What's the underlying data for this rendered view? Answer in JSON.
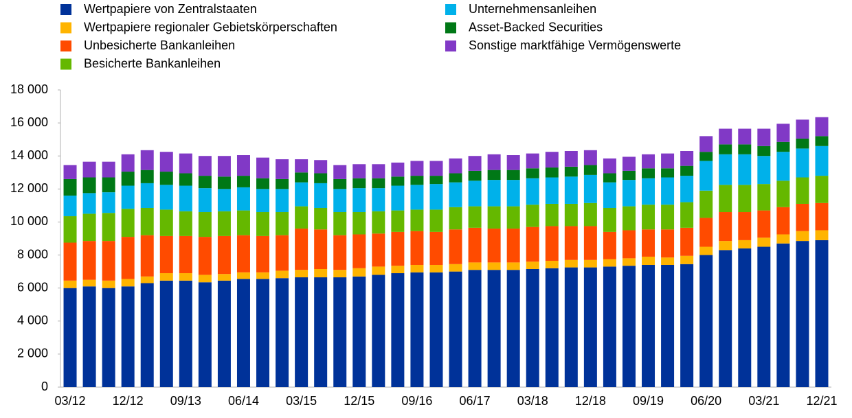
{
  "chart_data": {
    "type": "stacked_bar",
    "categories": [
      "03/12",
      null,
      null,
      "12/12",
      null,
      null,
      "09/13",
      null,
      null,
      "06/14",
      null,
      null,
      "03/15",
      null,
      null,
      "12/15",
      null,
      null,
      "09/16",
      null,
      null,
      "06/17",
      null,
      null,
      "03/18",
      null,
      null,
      "12/18",
      null,
      null,
      "09/19",
      null,
      null,
      "06/20",
      null,
      null,
      "03/21",
      null,
      null,
      "12/21"
    ],
    "series": [
      {
        "name": "Wertpapiere von Zentralstaaten",
        "color": "#003299",
        "values": [
          6000,
          6100,
          6000,
          6100,
          6300,
          6450,
          6450,
          6350,
          6450,
          6550,
          6550,
          6600,
          6650,
          6650,
          6650,
          6700,
          6800,
          6900,
          6950,
          6950,
          7000,
          7100,
          7100,
          7100,
          7150,
          7200,
          7250,
          7250,
          7300,
          7350,
          7400,
          7400,
          7450,
          8000,
          8300,
          8400,
          8500,
          8700,
          8850,
          8900
        ]
      },
      {
        "name": "Wertpapiere regionaler Gebietskörperschaften",
        "color": "#ffb400",
        "values": [
          450,
          400,
          450,
          450,
          400,
          450,
          450,
          450,
          400,
          400,
          400,
          450,
          450,
          500,
          450,
          500,
          500,
          450,
          450,
          450,
          450,
          450,
          450,
          450,
          450,
          450,
          450,
          450,
          450,
          450,
          500,
          450,
          500,
          500,
          550,
          500,
          550,
          550,
          600,
          600
        ]
      },
      {
        "name": "Unbesicherte Bankanleihen",
        "color": "#ff4b00",
        "values": [
          2300,
          2350,
          2400,
          2550,
          2500,
          2250,
          2250,
          2300,
          2300,
          2250,
          2200,
          2150,
          2500,
          2400,
          2100,
          2050,
          2000,
          2050,
          2050,
          2000,
          2100,
          2100,
          2050,
          2050,
          2100,
          2100,
          2050,
          2050,
          1650,
          1700,
          1650,
          1700,
          1700,
          1750,
          1750,
          1700,
          1650,
          1650,
          1650,
          1650
        ]
      },
      {
        "name": "Besicherte Bankanleihen",
        "color": "#65b800",
        "values": [
          1600,
          1650,
          1700,
          1700,
          1650,
          1600,
          1500,
          1500,
          1500,
          1500,
          1450,
          1400,
          1350,
          1300,
          1400,
          1350,
          1350,
          1300,
          1300,
          1350,
          1350,
          1300,
          1350,
          1350,
          1350,
          1350,
          1350,
          1400,
          1450,
          1450,
          1500,
          1500,
          1550,
          1650,
          1650,
          1650,
          1600,
          1600,
          1600,
          1650
        ]
      },
      {
        "name": "Unternehmensanleihen",
        "color": "#00b1ea",
        "values": [
          1250,
          1250,
          1250,
          1400,
          1500,
          1500,
          1550,
          1450,
          1350,
          1400,
          1400,
          1400,
          1450,
          1500,
          1400,
          1450,
          1400,
          1500,
          1500,
          1550,
          1500,
          1550,
          1600,
          1600,
          1600,
          1600,
          1650,
          1700,
          1550,
          1600,
          1600,
          1650,
          1600,
          1800,
          1850,
          1850,
          1700,
          1750,
          1750,
          1800
        ]
      },
      {
        "name": "Asset-Backed Securities",
        "color": "#007816",
        "values": [
          1000,
          950,
          900,
          850,
          800,
          800,
          750,
          750,
          750,
          700,
          650,
          600,
          600,
          600,
          600,
          600,
          600,
          550,
          550,
          500,
          550,
          600,
          600,
          600,
          600,
          600,
          600,
          600,
          550,
          550,
          600,
          550,
          600,
          550,
          600,
          600,
          600,
          600,
          600,
          600
        ]
      },
      {
        "name": "Sonstige marktfähige Vermögenswerte",
        "color": "#8139c6",
        "values": [
          850,
          950,
          950,
          1050,
          1200,
          1200,
          1200,
          1200,
          1250,
          1250,
          1250,
          1200,
          800,
          800,
          850,
          850,
          850,
          850,
          900,
          900,
          900,
          900,
          950,
          900,
          900,
          950,
          950,
          900,
          900,
          850,
          850,
          900,
          900,
          950,
          950,
          950,
          1050,
          1100,
          1150,
          1150
        ]
      }
    ],
    "ylim": [
      0,
      18000
    ],
    "yticks": [
      0,
      {
        "value": 2000,
        "label": "2 000"
      },
      {
        "value": 4000,
        "label": "4 000"
      },
      {
        "value": 6000,
        "label": "6 000"
      },
      {
        "value": 8000,
        "label": "8 000"
      },
      {
        "value": 10000,
        "label": "10 000"
      },
      {
        "value": 12000,
        "label": "12 000"
      },
      {
        "value": 14000,
        "label": "14 000"
      },
      {
        "value": 16000,
        "label": "16 000"
      },
      {
        "value": 18000,
        "label": "18 000"
      }
    ],
    "grid": false,
    "legend": "top"
  }
}
